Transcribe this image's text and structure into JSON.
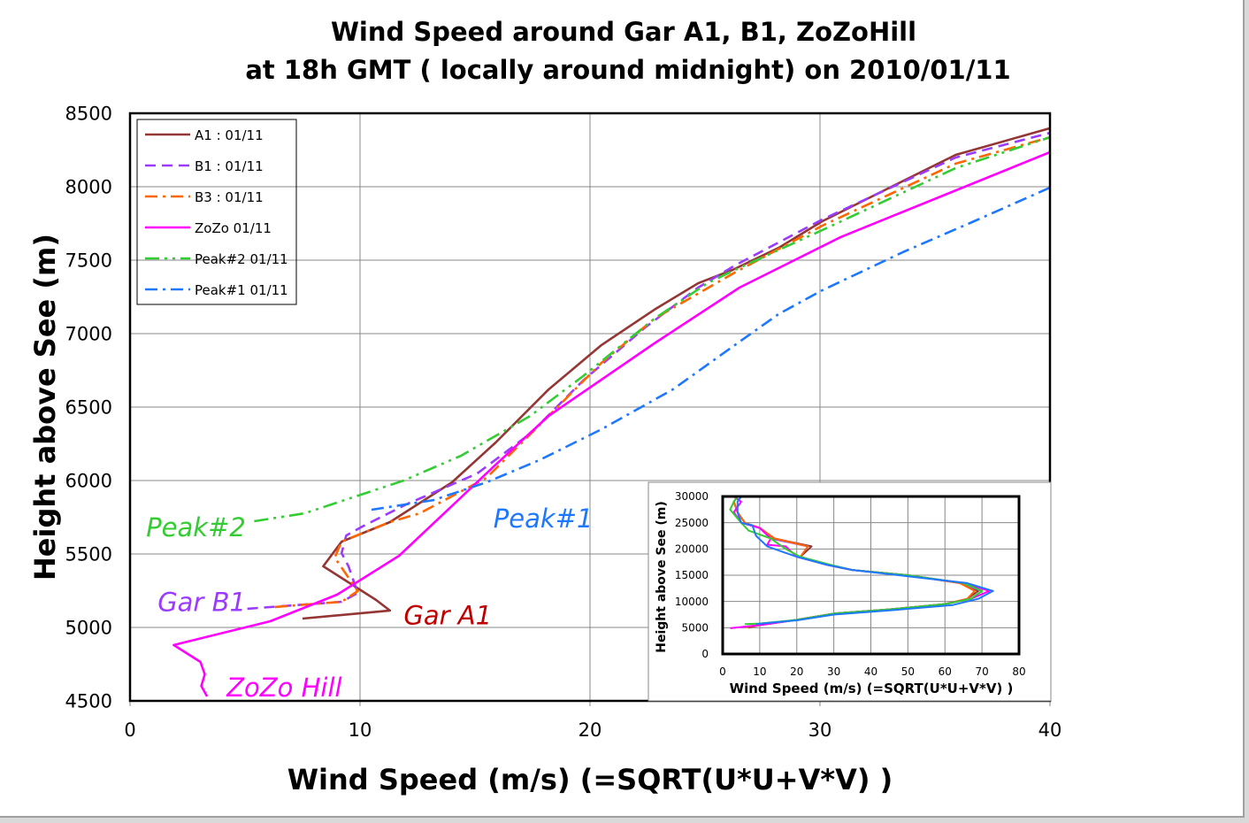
{
  "chart_data": [
    {
      "type": "line",
      "title_lines": [
        "Wind Speed around Gar A1, B1, ZoZoHill",
        "at 18h GMT ( locally around midnight) on 2010/01/11"
      ],
      "xlabel": "Wind Speed (m/s)  (=SQRT(U*U+V*V) )",
      "ylabel": "Height above See (m)",
      "xlim": [
        0,
        40
      ],
      "ylim": [
        4500,
        8500
      ],
      "xticks": [
        0,
        10,
        20,
        30,
        40
      ],
      "yticks": [
        4500,
        5000,
        5500,
        6000,
        6500,
        7000,
        7500,
        8000,
        8500
      ],
      "grid": true,
      "legend_position": "top-left",
      "series": [
        {
          "name": "A1 : 01/11",
          "color": "#943634",
          "dash": "solid",
          "points": [
            [
              7.5,
              5060
            ],
            [
              11.3,
              5115
            ],
            [
              10.7,
              5187
            ],
            [
              8.4,
              5416
            ],
            [
              9.2,
              5584
            ],
            [
              11.3,
              5717
            ],
            [
              14.0,
              5988
            ],
            [
              15.9,
              6259
            ],
            [
              18.2,
              6620
            ],
            [
              20.5,
              6922
            ],
            [
              22.8,
              7163
            ],
            [
              24.7,
              7343
            ],
            [
              26.2,
              7434
            ],
            [
              28.2,
              7584
            ],
            [
              30.1,
              7765
            ],
            [
              32.8,
              7976
            ],
            [
              35.9,
              8217
            ],
            [
              40.0,
              8398
            ]
          ]
        },
        {
          "name": "B1 : 01/11",
          "color": "#9B3BFF",
          "dash": "dash",
          "points": [
            [
              5.1,
              5127
            ],
            [
              9.2,
              5175
            ],
            [
              9.9,
              5235
            ],
            [
              9.5,
              5416
            ],
            [
              9.2,
              5506
            ],
            [
              9.4,
              5626
            ],
            [
              10.1,
              5687
            ],
            [
              12.0,
              5837
            ],
            [
              15.1,
              6048
            ],
            [
              17.4,
              6319
            ],
            [
              19.7,
              6681
            ],
            [
              22.4,
              7042
            ],
            [
              24.7,
              7313
            ],
            [
              26.3,
              7464
            ],
            [
              30.1,
              7777
            ],
            [
              35.9,
              8199
            ],
            [
              40.0,
              8367
            ]
          ]
        },
        {
          "name": "B3 : 01/11",
          "color": "#FF6600",
          "dash": "dashdot",
          "points": [
            [
              6.3,
              5139
            ],
            [
              9.2,
              5175
            ],
            [
              9.9,
              5247
            ],
            [
              8.9,
              5476
            ],
            [
              9.2,
              5584
            ],
            [
              11.3,
              5717
            ],
            [
              12.6,
              5777
            ],
            [
              15.5,
              6018
            ],
            [
              18.2,
              6440
            ],
            [
              20.5,
              6801
            ],
            [
              22.8,
              7102
            ],
            [
              26.3,
              7416
            ],
            [
              30.1,
              7735
            ],
            [
              35.9,
              8157
            ],
            [
              40.0,
              8337
            ]
          ]
        },
        {
          "name": "ZoZo 01/11",
          "color": "#FF00FF",
          "dash": "solid",
          "points": [
            [
              3.35,
              4530
            ],
            [
              3.1,
              4602
            ],
            [
              3.25,
              4681
            ],
            [
              3.06,
              4765
            ],
            [
              1.9,
              4880
            ],
            [
              6.1,
              5042
            ],
            [
              9.0,
              5223
            ],
            [
              11.7,
              5488
            ],
            [
              15.9,
              6108
            ],
            [
              18.2,
              6440
            ],
            [
              22.8,
              6934
            ],
            [
              26.5,
              7313
            ],
            [
              30.9,
              7657
            ],
            [
              40.0,
              8235
            ]
          ]
        },
        {
          "name": "Peak#2 01/11",
          "color": "#33CC33",
          "dash": "dashdotdot",
          "points": [
            [
              5.4,
              5723
            ],
            [
              7.6,
              5777
            ],
            [
              11.9,
              6000
            ],
            [
              14.4,
              6169
            ],
            [
              17.4,
              6440
            ],
            [
              19.7,
              6711
            ],
            [
              22.8,
              7102
            ],
            [
              25.1,
              7343
            ],
            [
              26.3,
              7434
            ],
            [
              30.1,
              7705
            ],
            [
              35.9,
              8127
            ],
            [
              40.0,
              8337
            ]
          ]
        },
        {
          "name": "Peak#1 01/11",
          "color": "#1E78FF",
          "dash": "dashdot",
          "points": [
            [
              10.5,
              5801
            ],
            [
              13.2,
              5867
            ],
            [
              15.5,
              5988
            ],
            [
              17.8,
              6139
            ],
            [
              20.5,
              6349
            ],
            [
              23.6,
              6620
            ],
            [
              26.3,
              6922
            ],
            [
              28.2,
              7133
            ],
            [
              30.1,
              7295
            ],
            [
              33.6,
              7554
            ],
            [
              36.7,
              7765
            ],
            [
              40.0,
              7994
            ]
          ]
        }
      ],
      "annotations": [
        {
          "text": "Peak#2",
          "color": "#33CC33",
          "at": [
            0.7,
            5620
          ]
        },
        {
          "text": "Gar B1",
          "color": "#9B3BFF",
          "at": [
            1.2,
            5110
          ]
        },
        {
          "text": "Gar A1",
          "color": "#C00000",
          "at": [
            11.9,
            5020
          ]
        },
        {
          "text": "ZoZo Hill",
          "color": "#FF00FF",
          "at": [
            4.2,
            4530
          ]
        },
        {
          "text": "Peak#1",
          "color": "#1E78FF",
          "at": [
            15.8,
            5680
          ]
        }
      ]
    },
    {
      "type": "line",
      "xlabel": "Wind Speed (m/s)  (=SQRT(U*U+V*V)  )",
      "ylabel": "Height above See (m)",
      "xlim": [
        0,
        80
      ],
      "ylim": [
        0,
        30000
      ],
      "xticks": [
        0,
        10,
        20,
        30,
        40,
        50,
        60,
        70,
        80
      ],
      "yticks": [
        0,
        5000,
        10000,
        15000,
        20000,
        25000,
        30000
      ],
      "grid": true,
      "series": [
        {
          "color": "#943634",
          "points": [
            [
              7,
              5000
            ],
            [
              10,
              5500
            ],
            [
              20,
              6500
            ],
            [
              30,
              7700
            ],
            [
              45,
              8500
            ],
            [
              60,
              9500
            ],
            [
              66,
              10500
            ],
            [
              69,
              12000
            ],
            [
              64,
              13500
            ],
            [
              50,
              15000
            ],
            [
              35,
              16000
            ],
            [
              28,
              17000
            ],
            [
              21,
              18500
            ],
            [
              24,
              20500
            ],
            [
              14,
              22000
            ],
            [
              10,
              24000
            ],
            [
              6,
              25000
            ],
            [
              4,
              27000
            ],
            [
              3,
              29000
            ],
            [
              4,
              30000
            ]
          ]
        },
        {
          "color": "#9B3BFF",
          "points": [
            [
              5,
              5100
            ],
            [
              10,
              5500
            ],
            [
              20,
              6500
            ],
            [
              30,
              7700
            ],
            [
              45,
              8500
            ],
            [
              60,
              9500
            ],
            [
              67,
              10500
            ],
            [
              70,
              12000
            ],
            [
              64,
              13500
            ],
            [
              50,
              15000
            ],
            [
              35,
              16000
            ],
            [
              28,
              17000
            ],
            [
              21,
              18500
            ],
            [
              23,
              20500
            ],
            [
              13,
              22000
            ],
            [
              10,
              24000
            ],
            [
              5,
              25000
            ],
            [
              4,
              27000
            ],
            [
              3,
              29000
            ],
            [
              4,
              30000
            ]
          ]
        },
        {
          "color": "#FF6600",
          "points": [
            [
              6,
              5100
            ],
            [
              10,
              5500
            ],
            [
              20,
              6500
            ],
            [
              30,
              7700
            ],
            [
              45,
              8500
            ],
            [
              60,
              9500
            ],
            [
              66,
              10500
            ],
            [
              68,
              12000
            ],
            [
              64,
              13500
            ],
            [
              50,
              15000
            ],
            [
              35,
              16000
            ],
            [
              28,
              17000
            ],
            [
              21,
              18500
            ],
            [
              23,
              20500
            ],
            [
              14,
              22000
            ],
            [
              10,
              24000
            ],
            [
              6,
              25000
            ],
            [
              4,
              27000
            ],
            [
              3,
              29000
            ],
            [
              4,
              30000
            ]
          ]
        },
        {
          "color": "#FF00FF",
          "points": [
            [
              2,
              4900
            ],
            [
              10,
              5500
            ],
            [
              20,
              6500
            ],
            [
              30,
              7700
            ],
            [
              45,
              8500
            ],
            [
              60,
              9500
            ],
            [
              67,
              10500
            ],
            [
              72,
              12000
            ],
            [
              65,
              13500
            ],
            [
              50,
              15000
            ],
            [
              35,
              16000
            ],
            [
              28,
              17000
            ],
            [
              20,
              18500
            ],
            [
              17,
              20500
            ],
            [
              12,
              20800
            ],
            [
              13,
              22000
            ],
            [
              10,
              24000
            ],
            [
              5,
              25000
            ],
            [
              3,
              27000
            ],
            [
              5,
              29000
            ],
            [
              3,
              30000
            ]
          ]
        },
        {
          "color": "#33CC33",
          "points": [
            [
              6,
              5700
            ],
            [
              10,
              5800
            ],
            [
              20,
              6500
            ],
            [
              30,
              7700
            ],
            [
              45,
              8500
            ],
            [
              60,
              9500
            ],
            [
              67,
              10500
            ],
            [
              70,
              12000
            ],
            [
              65,
              13500
            ],
            [
              50,
              15000
            ],
            [
              35,
              16000
            ],
            [
              29,
              17000
            ],
            [
              21,
              18500
            ],
            [
              17,
              20000
            ],
            [
              13,
              22000
            ],
            [
              7,
              23500
            ],
            [
              5,
              25000
            ],
            [
              2,
              27500
            ],
            [
              3,
              29000
            ],
            [
              4,
              30000
            ]
          ]
        },
        {
          "color": "#1E78FF",
          "points": [
            [
              9,
              5700
            ],
            [
              12,
              5900
            ],
            [
              20,
              6400
            ],
            [
              30,
              7500
            ],
            [
              45,
              8300
            ],
            [
              62,
              9300
            ],
            [
              69,
              10500
            ],
            [
              73,
              12000
            ],
            [
              66,
              13500
            ],
            [
              50,
              14800
            ],
            [
              35,
              16000
            ],
            [
              28,
              17000
            ],
            [
              20,
              18500
            ],
            [
              12,
              20500
            ],
            [
              9,
              22500
            ],
            [
              8,
              24500
            ],
            [
              5,
              25000
            ],
            [
              4,
              27000
            ],
            [
              4,
              29000
            ],
            [
              5,
              30000
            ]
          ]
        }
      ]
    }
  ]
}
